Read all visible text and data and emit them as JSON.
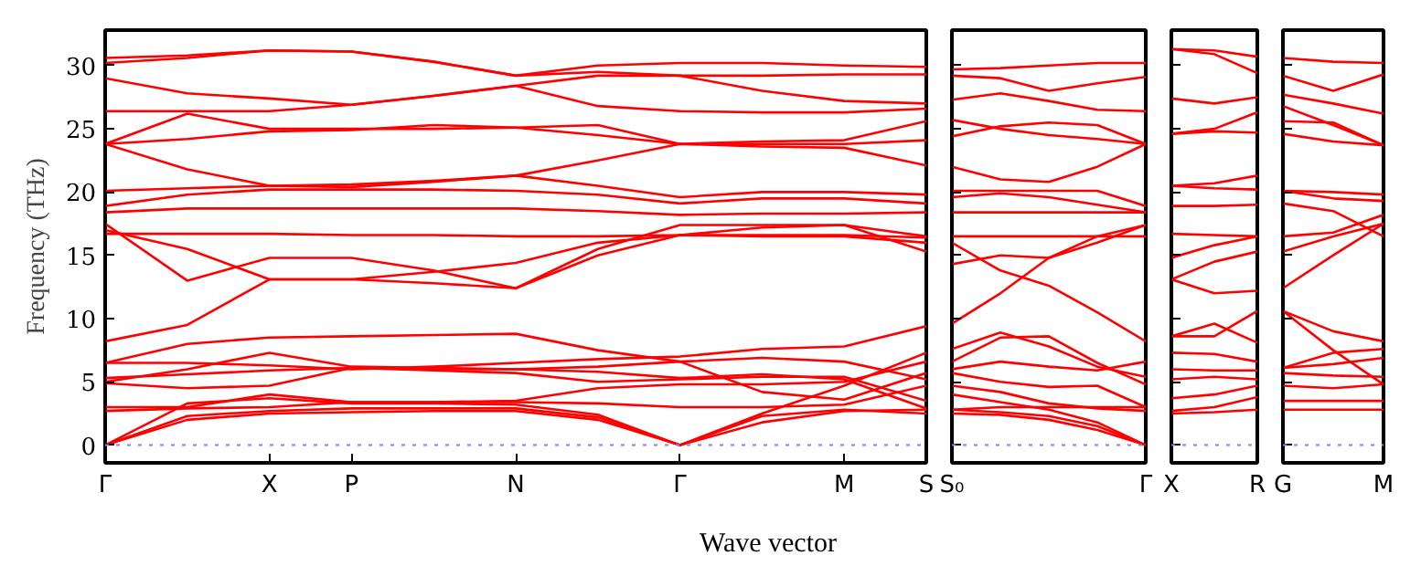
{
  "chart_data": [
    {
      "type": "line",
      "ylabel": "Frequency (THz)",
      "xlabel": "Wave vector",
      "ylim": [
        -1.4,
        32.8
      ],
      "categories": [
        "Γ",
        null,
        "X",
        "P",
        null,
        "N",
        null,
        "Γ",
        null,
        "M",
        "S"
      ],
      "yticks": [
        0,
        5,
        10,
        15,
        20,
        25,
        30
      ],
      "ref_lines": [
        {
          "axis": "y",
          "value": 0,
          "color": "#8080ff",
          "line_style": "dotted"
        }
      ],
      "series": [
        {
          "color": "#ff0000",
          "values": [
            0,
            2.0,
            2.5,
            2.6,
            2.7,
            2.7,
            2.0,
            0,
            2.5,
            4.7,
            7.3
          ]
        },
        {
          "color": "#ff0000",
          "values": [
            0,
            2.3,
            2.7,
            2.9,
            2.9,
            2.9,
            2.2,
            0,
            2.3,
            2.8,
            2.5
          ]
        },
        {
          "color": "#ff0000",
          "values": [
            0,
            3.3,
            3.7,
            3.3,
            3.3,
            3.2,
            2.4,
            0,
            1.8,
            2.7,
            2.8
          ]
        },
        {
          "color": "#ff0000",
          "values": [
            2.7,
            2.9,
            3.0,
            3.4,
            3.4,
            3.4,
            3.3,
            3.0,
            3.0,
            3.2,
            4.7
          ]
        },
        {
          "color": "#ff0000",
          "values": [
            3.0,
            3.0,
            4.0,
            3.4,
            3.4,
            3.5,
            4.5,
            4.8,
            4.8,
            5.0,
            6.6
          ]
        },
        {
          "color": "#ff0000",
          "values": [
            4.9,
            4.5,
            4.7,
            6.1,
            5.9,
            5.7,
            5.0,
            5.2,
            5.4,
            5.4,
            3.5
          ]
        },
        {
          "color": "#ff0000",
          "values": [
            5.3,
            5.6,
            5.9,
            6.1,
            6.0,
            6.0,
            5.8,
            5.3,
            5.6,
            5.2,
            2.9
          ]
        },
        {
          "color": "#ff0000",
          "values": [
            5.0,
            6.0,
            7.3,
            6.2,
            6.1,
            6.0,
            6.2,
            6.6,
            6.9,
            6.6,
            5.2
          ]
        },
        {
          "color": "#ff0000",
          "values": [
            6.5,
            6.5,
            6.3,
            6.0,
            6.2,
            6.5,
            6.8,
            7.0,
            7.6,
            7.8,
            9.4
          ]
        },
        {
          "color": "#ff0000",
          "values": [
            6.5,
            8.0,
            8.5,
            8.6,
            8.7,
            8.8,
            7.5,
            6.6,
            4.2,
            3.6,
            5.7
          ]
        },
        {
          "color": "#ff0000",
          "values": [
            8.2,
            9.5,
            13.1,
            13.1,
            12.8,
            12.4,
            15.0,
            16.6,
            16.5,
            16.5,
            16.0
          ]
        },
        {
          "color": "#ff0000",
          "values": [
            17.5,
            13.0,
            14.8,
            14.8,
            13.8,
            12.4,
            15.5,
            17.4,
            17.4,
            17.4,
            16.5
          ]
        },
        {
          "color": "#ff0000",
          "values": [
            17.0,
            15.5,
            13.1,
            13.1,
            13.7,
            14.4,
            16.0,
            16.6,
            16.6,
            16.6,
            16.4
          ]
        },
        {
          "color": "#ff0000",
          "values": [
            16.7,
            16.7,
            16.7,
            16.6,
            16.6,
            16.5,
            16.5,
            16.6,
            17.2,
            17.4,
            15.3
          ]
        },
        {
          "color": "#ff0000",
          "values": [
            18.4,
            18.7,
            18.7,
            18.7,
            18.7,
            18.7,
            18.5,
            18.2,
            18.3,
            18.3,
            18.4
          ]
        },
        {
          "color": "#ff0000",
          "values": [
            18.9,
            19.8,
            20.2,
            20.2,
            20.2,
            20.1,
            19.8,
            19.1,
            19.5,
            19.5,
            19.1
          ]
        },
        {
          "color": "#ff0000",
          "values": [
            20.1,
            20.3,
            20.5,
            20.4,
            20.8,
            21.3,
            20.5,
            19.6,
            20.0,
            20.0,
            19.8
          ]
        },
        {
          "color": "#ff0000",
          "values": [
            23.8,
            21.8,
            20.5,
            20.6,
            20.9,
            21.3,
            22.5,
            23.8,
            23.6,
            23.5,
            22.1
          ]
        },
        {
          "color": "#ff0000",
          "values": [
            23.8,
            24.2,
            24.8,
            24.9,
            25.3,
            25.1,
            24.5,
            23.8,
            23.8,
            23.8,
            24.1
          ]
        },
        {
          "color": "#ff0000",
          "values": [
            23.8,
            26.2,
            25.0,
            25.0,
            25.0,
            25.1,
            25.3,
            23.8,
            24.0,
            24.1,
            25.6
          ]
        },
        {
          "color": "#ff0000",
          "values": [
            26.4,
            26.4,
            26.4,
            26.9,
            27.6,
            28.4,
            26.8,
            26.4,
            26.3,
            26.3,
            26.6
          ]
        },
        {
          "color": "#ff0000",
          "values": [
            29.0,
            27.8,
            27.4,
            26.9,
            27.6,
            28.4,
            29.2,
            29.2,
            29.2,
            29.3,
            29.3
          ]
        },
        {
          "color": "#ff0000",
          "values": [
            30.2,
            30.6,
            31.2,
            31.1,
            30.3,
            29.2,
            29.5,
            29.2,
            28.0,
            27.2,
            27.0
          ]
        },
        {
          "color": "#ff0000",
          "values": [
            30.6,
            30.8,
            31.2,
            31.1,
            30.3,
            29.2,
            30.0,
            30.2,
            30.2,
            30.0,
            29.9
          ]
        }
      ]
    },
    {
      "type": "line",
      "tick_labels": "x",
      "ylim": [
        -1.4,
        32.8
      ],
      "categories": [
        "S₀",
        null,
        null,
        null,
        "Γ"
      ],
      "yticks": [
        {
          "value": 0,
          "label": null
        },
        {
          "value": 5,
          "label": null
        },
        {
          "value": 10,
          "label": null
        },
        {
          "value": 15,
          "label": null
        },
        {
          "value": 20,
          "label": null
        },
        {
          "value": 25,
          "label": null
        },
        {
          "value": 30,
          "label": null
        }
      ],
      "ref_lines": [
        {
          "axis": "y",
          "value": 0,
          "color": "#8080ff",
          "line_style": "dotted"
        }
      ],
      "series": [
        {
          "color": "#ff0000",
          "values": [
            2.5,
            2.4,
            2.0,
            1.2,
            0
          ]
        },
        {
          "color": "#ff0000",
          "values": [
            2.8,
            2.6,
            2.3,
            1.5,
            0
          ]
        },
        {
          "color": "#ff0000",
          "values": [
            4.0,
            3.4,
            2.8,
            1.8,
            0
          ]
        },
        {
          "color": "#ff0000",
          "values": [
            4.7,
            4.2,
            3.3,
            2.9,
            2.7
          ]
        },
        {
          "color": "#ff0000",
          "values": [
            5.7,
            5.0,
            4.6,
            4.7,
            3.0
          ]
        },
        {
          "color": "#ff0000",
          "values": [
            6.6,
            8.5,
            8.6,
            6.5,
            4.8
          ]
        },
        {
          "color": "#ff0000",
          "values": [
            7.6,
            8.9,
            7.8,
            6.2,
            5.4
          ]
        },
        {
          "color": "#ff0000",
          "values": [
            2.8,
            3.0,
            3.0,
            3.0,
            3.0
          ]
        },
        {
          "color": "#ff0000",
          "values": [
            6.0,
            6.6,
            6.2,
            5.9,
            6.6
          ]
        },
        {
          "color": "#ff0000",
          "values": [
            9.6,
            12.0,
            14.8,
            16.5,
            17.4
          ]
        },
        {
          "color": "#ff0000",
          "values": [
            16.0,
            13.8,
            12.6,
            10.5,
            8.2
          ]
        },
        {
          "color": "#ff0000",
          "values": [
            14.3,
            15.0,
            14.8,
            16.0,
            17.4
          ]
        },
        {
          "color": "#ff0000",
          "values": [
            16.5,
            16.5,
            16.5,
            16.5,
            16.5
          ]
        },
        {
          "color": "#ff0000",
          "values": [
            18.4,
            18.4,
            18.4,
            18.4,
            18.4
          ]
        },
        {
          "color": "#ff0000",
          "values": [
            19.6,
            19.9,
            19.6,
            19.0,
            18.4
          ]
        },
        {
          "color": "#ff0000",
          "values": [
            20.1,
            20.1,
            20.1,
            20.1,
            18.9
          ]
        },
        {
          "color": "#ff0000",
          "values": [
            22.0,
            21.0,
            20.8,
            22.0,
            23.8
          ]
        },
        {
          "color": "#ff0000",
          "values": [
            25.7,
            25.0,
            24.5,
            24.2,
            23.8
          ]
        },
        {
          "color": "#ff0000",
          "values": [
            24.4,
            25.2,
            25.5,
            25.3,
            23.8
          ]
        },
        {
          "color": "#ff0000",
          "values": [
            27.3,
            27.8,
            27.2,
            26.5,
            26.4
          ]
        },
        {
          "color": "#ff0000",
          "values": [
            29.2,
            29.0,
            28.0,
            28.6,
            29.1
          ]
        },
        {
          "color": "#ff0000",
          "values": [
            29.7,
            29.8,
            30.0,
            30.2,
            30.2
          ]
        }
      ]
    },
    {
      "type": "line",
      "tick_labels": "x",
      "ylim": [
        -1.4,
        32.8
      ],
      "categories": [
        "X",
        null,
        "R"
      ],
      "yticks": [
        {
          "value": 0,
          "label": null
        },
        {
          "value": 5,
          "label": null
        },
        {
          "value": 10,
          "label": null
        },
        {
          "value": 15,
          "label": null
        },
        {
          "value": 20,
          "label": null
        },
        {
          "value": 25,
          "label": null
        },
        {
          "value": 30,
          "label": null
        }
      ],
      "ref_lines": [
        {
          "axis": "y",
          "value": 0,
          "color": "#8080ff",
          "line_style": "dotted"
        }
      ],
      "series": [
        {
          "color": "#ff0000",
          "values": [
            2.5,
            2.6,
            2.8
          ]
        },
        {
          "color": "#ff0000",
          "values": [
            2.7,
            3.0,
            3.8
          ]
        },
        {
          "color": "#ff0000",
          "values": [
            3.7,
            4.0,
            4.7
          ]
        },
        {
          "color": "#ff0000",
          "values": [
            5.2,
            5.4,
            5.2
          ]
        },
        {
          "color": "#ff0000",
          "values": [
            6.0,
            5.9,
            5.9
          ]
        },
        {
          "color": "#ff0000",
          "values": [
            7.3,
            7.2,
            6.6
          ]
        },
        {
          "color": "#ff0000",
          "values": [
            8.6,
            8.6,
            10.6
          ]
        },
        {
          "color": "#ff0000",
          "values": [
            8.6,
            9.6,
            8.1
          ]
        },
        {
          "color": "#ff0000",
          "values": [
            13.1,
            12.0,
            12.2
          ]
        },
        {
          "color": "#ff0000",
          "values": [
            13.1,
            14.5,
            15.3
          ]
        },
        {
          "color": "#ff0000",
          "values": [
            14.8,
            15.8,
            16.5
          ]
        },
        {
          "color": "#ff0000",
          "values": [
            16.7,
            16.6,
            16.5
          ]
        },
        {
          "color": "#ff0000",
          "values": [
            18.9,
            18.9,
            19.0
          ]
        },
        {
          "color": "#ff0000",
          "values": [
            20.5,
            20.3,
            20.2
          ]
        },
        {
          "color": "#ff0000",
          "values": [
            20.5,
            20.7,
            21.3
          ]
        },
        {
          "color": "#ff0000",
          "values": [
            24.6,
            24.8,
            24.7
          ]
        },
        {
          "color": "#ff0000",
          "values": [
            24.6,
            25.0,
            26.3
          ]
        },
        {
          "color": "#ff0000",
          "values": [
            27.4,
            27.0,
            27.5
          ]
        },
        {
          "color": "#ff0000",
          "values": [
            31.3,
            30.9,
            29.4
          ]
        },
        {
          "color": "#ff0000",
          "values": [
            31.3,
            31.2,
            30.7
          ]
        }
      ]
    },
    {
      "type": "line",
      "tick_labels": "x",
      "ylim": [
        -1.4,
        32.8
      ],
      "categories": [
        "G",
        null,
        "M"
      ],
      "yticks": [
        {
          "value": 0,
          "label": null
        },
        {
          "value": 5,
          "label": null
        },
        {
          "value": 10,
          "label": null
        },
        {
          "value": 15,
          "label": null
        },
        {
          "value": 20,
          "label": null
        },
        {
          "value": 25,
          "label": null
        },
        {
          "value": 30,
          "label": null
        }
      ],
      "ref_lines": [
        {
          "axis": "y",
          "value": 0,
          "color": "#8080ff",
          "line_style": "dotted"
        }
      ],
      "series": [
        {
          "color": "#ff0000",
          "values": [
            2.8,
            2.8,
            2.8
          ]
        },
        {
          "color": "#ff0000",
          "values": [
            3.5,
            3.5,
            3.5
          ]
        },
        {
          "color": "#ff0000",
          "values": [
            4.7,
            4.5,
            4.8
          ]
        },
        {
          "color": "#ff0000",
          "values": [
            5.7,
            5.5,
            5.4
          ]
        },
        {
          "color": "#ff0000",
          "values": [
            6.1,
            6.4,
            6.9
          ]
        },
        {
          "color": "#ff0000",
          "values": [
            10.6,
            7.5,
            4.8
          ]
        },
        {
          "color": "#ff0000",
          "values": [
            10.6,
            9.0,
            8.2
          ]
        },
        {
          "color": "#ff0000",
          "values": [
            6.1,
            7.3,
            7.6
          ]
        },
        {
          "color": "#ff0000",
          "values": [
            12.4,
            15.0,
            17.5
          ]
        },
        {
          "color": "#ff0000",
          "values": [
            15.3,
            16.5,
            17.5
          ]
        },
        {
          "color": "#ff0000",
          "values": [
            16.5,
            16.8,
            18.2
          ]
        },
        {
          "color": "#ff0000",
          "values": [
            19.1,
            18.5,
            16.5
          ]
        },
        {
          "color": "#ff0000",
          "values": [
            20.1,
            20.0,
            19.8
          ]
        },
        {
          "color": "#ff0000",
          "values": [
            20.1,
            19.5,
            19.3
          ]
        },
        {
          "color": "#ff0000",
          "values": [
            24.6,
            24.0,
            23.7
          ]
        },
        {
          "color": "#ff0000",
          "values": [
            25.6,
            25.5,
            23.7
          ]
        },
        {
          "color": "#ff0000",
          "values": [
            26.8,
            25.3,
            23.7
          ]
        },
        {
          "color": "#ff0000",
          "values": [
            27.7,
            27.0,
            26.2
          ]
        },
        {
          "color": "#ff0000",
          "values": [
            29.2,
            28.0,
            29.3
          ]
        },
        {
          "color": "#ff0000",
          "values": [
            30.6,
            30.3,
            30.2
          ]
        }
      ]
    }
  ]
}
